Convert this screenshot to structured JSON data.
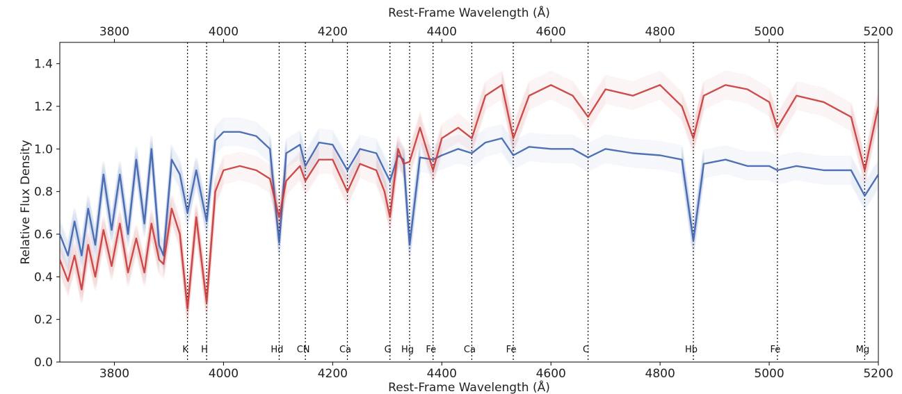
{
  "chart_data": {
    "type": "line",
    "title": "",
    "xlabel_top": "Rest-Frame Wavelength (Å)",
    "xlabel": "Rest-Frame Wavelength (Å)",
    "ylabel": "Relative Flux Density",
    "xlim": [
      3700,
      5200
    ],
    "ylim": [
      0.0,
      1.5
    ],
    "xticks": [
      3800,
      4000,
      4200,
      4400,
      4600,
      4800,
      5000,
      5200
    ],
    "yticks": [
      0.0,
      0.2,
      0.4,
      0.6,
      0.8,
      1.0,
      1.2,
      1.4
    ],
    "legend": "none",
    "grid": false,
    "spectral_lines": [
      {
        "label": "K",
        "x": 3934
      },
      {
        "label": "H",
        "x": 3969
      },
      {
        "label": "Hd",
        "x": 4102
      },
      {
        "label": "CN",
        "x": 4150
      },
      {
        "label": "Ca",
        "x": 4227
      },
      {
        "label": "G",
        "x": 4305
      },
      {
        "label": "Hg",
        "x": 4341
      },
      {
        "label": "Fe",
        "x": 4384
      },
      {
        "label": "Ca",
        "x": 4455
      },
      {
        "label": "Fe",
        "x": 4531
      },
      {
        "label": "C",
        "x": 4668
      },
      {
        "label": "Hb",
        "x": 4861
      },
      {
        "label": "Fe",
        "x": 5015
      },
      {
        "label": "Mg",
        "x": 5175
      }
    ],
    "series": [
      {
        "color": "#3d62ad",
        "x": [
          3700,
          3715,
          3727,
          3740,
          3752,
          3765,
          3780,
          3795,
          3810,
          3825,
          3840,
          3855,
          3868,
          3882,
          3890,
          3905,
          3920,
          3934,
          3950,
          3969,
          3985,
          4000,
          4030,
          4060,
          4085,
          4102,
          4115,
          4140,
          4150,
          4175,
          4200,
          4227,
          4250,
          4280,
          4295,
          4305,
          4320,
          4330,
          4341,
          4360,
          4384,
          4400,
          4430,
          4455,
          4480,
          4510,
          4531,
          4560,
          4600,
          4640,
          4668,
          4700,
          4750,
          4800,
          4840,
          4861,
          4880,
          4920,
          4960,
          5000,
          5015,
          5050,
          5100,
          5150,
          5175,
          5200
        ],
        "y": [
          0.6,
          0.5,
          0.66,
          0.5,
          0.72,
          0.55,
          0.88,
          0.62,
          0.88,
          0.6,
          0.95,
          0.65,
          1.0,
          0.55,
          0.5,
          0.95,
          0.88,
          0.7,
          0.9,
          0.66,
          1.04,
          1.08,
          1.08,
          1.06,
          1.0,
          0.56,
          0.98,
          1.02,
          0.92,
          1.03,
          1.02,
          0.9,
          1.0,
          0.98,
          0.9,
          0.85,
          0.97,
          0.95,
          0.55,
          0.96,
          0.95,
          0.97,
          1.0,
          0.98,
          1.03,
          1.05,
          0.97,
          1.01,
          1.0,
          1.0,
          0.96,
          1.0,
          0.98,
          0.97,
          0.95,
          0.57,
          0.93,
          0.95,
          0.92,
          0.92,
          0.9,
          0.92,
          0.9,
          0.9,
          0.78,
          0.88
        ]
      },
      {
        "color": "#c83a3a",
        "x": [
          3700,
          3715,
          3727,
          3740,
          3752,
          3765,
          3780,
          3795,
          3810,
          3825,
          3840,
          3855,
          3868,
          3882,
          3890,
          3905,
          3920,
          3934,
          3950,
          3969,
          3985,
          4000,
          4030,
          4060,
          4085,
          4102,
          4115,
          4140,
          4150,
          4175,
          4200,
          4227,
          4250,
          4280,
          4295,
          4305,
          4320,
          4330,
          4341,
          4360,
          4384,
          4400,
          4430,
          4455,
          4480,
          4510,
          4531,
          4560,
          4600,
          4640,
          4668,
          4700,
          4750,
          4800,
          4840,
          4861,
          4880,
          4920,
          4960,
          5000,
          5015,
          5050,
          5100,
          5150,
          5175,
          5200
        ],
        "y": [
          0.48,
          0.38,
          0.5,
          0.34,
          0.55,
          0.4,
          0.62,
          0.45,
          0.65,
          0.42,
          0.58,
          0.42,
          0.65,
          0.48,
          0.46,
          0.72,
          0.6,
          0.25,
          0.68,
          0.28,
          0.8,
          0.9,
          0.92,
          0.9,
          0.86,
          0.68,
          0.85,
          0.92,
          0.85,
          0.95,
          0.95,
          0.8,
          0.93,
          0.9,
          0.8,
          0.68,
          1.0,
          0.93,
          0.94,
          1.1,
          0.9,
          1.05,
          1.1,
          1.05,
          1.25,
          1.3,
          1.05,
          1.25,
          1.3,
          1.25,
          1.15,
          1.28,
          1.25,
          1.3,
          1.2,
          1.05,
          1.25,
          1.3,
          1.28,
          1.22,
          1.1,
          1.25,
          1.22,
          1.15,
          0.9,
          1.2
        ]
      }
    ]
  }
}
